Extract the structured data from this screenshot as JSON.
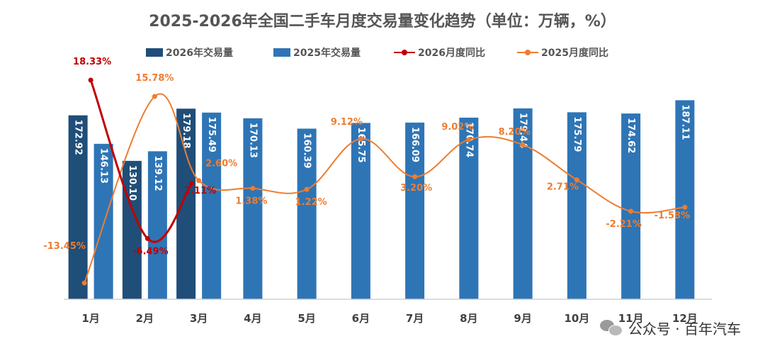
{
  "title": "2025-2026年全国二手车月度交易量变化趋势（单位：万辆，%）",
  "legend": {
    "s2026_volume": "2026年交易量",
    "s2025_volume": "2025年交易量",
    "s2026_yoy": "2026月度同比",
    "s2025_yoy": "2025月度同比"
  },
  "colors": {
    "vol2026": "#1f4e79",
    "vol2025": "#2e75b6",
    "yoy2026": "#c00000",
    "yoy2025": "#ed7d31",
    "bar_label": "#ffffff",
    "axis": "#d0d0d0",
    "tick": "#404040"
  },
  "watermark": "公众号 · 百年汽车",
  "chart_data": {
    "type": "bar",
    "categories": [
      "1月",
      "2月",
      "3月",
      "4月",
      "5月",
      "6月",
      "7月",
      "8月",
      "9月",
      "10月",
      "11月",
      "12月"
    ],
    "series": [
      {
        "name": "2026年交易量",
        "kind": "bar",
        "values": [
          172.92,
          130.1,
          179.18,
          null,
          null,
          null,
          null,
          null,
          null,
          null,
          null,
          null
        ],
        "labels": [
          "172.92",
          "130.10",
          "179.18"
        ]
      },
      {
        "name": "2025年交易量",
        "kind": "bar",
        "values": [
          146.13,
          139.12,
          175.49,
          170.13,
          160.39,
          165.75,
          166.09,
          170.74,
          179.44,
          175.79,
          174.62,
          187.11
        ],
        "labels": [
          "146.13",
          "139.12",
          "175.49",
          "170.13",
          "160.39",
          "165.75",
          "166.09",
          "170.74",
          "179.44",
          "175.79",
          "174.62",
          "187.11"
        ]
      },
      {
        "name": "2026月度同比",
        "kind": "line",
        "unit": "%",
        "values": [
          18.33,
          -6.49,
          2.11,
          null,
          null,
          null,
          null,
          null,
          null,
          null,
          null,
          null
        ],
        "labels": [
          "18.33%",
          "-6.49%",
          "2.11%"
        ]
      },
      {
        "name": "2025月度同比",
        "kind": "line",
        "unit": "%",
        "values": [
          -13.45,
          15.78,
          2.6,
          1.38,
          1.22,
          9.12,
          3.2,
          9.02,
          8.2,
          2.71,
          -2.21,
          -1.58
        ],
        "labels": [
          "-13.45%",
          "15.78%",
          "2.60%",
          "1.38%",
          "1.22%",
          "9.12%",
          "3.20%",
          "9.02%",
          "8.20%",
          "2.71%",
          "-2.21%",
          "-1.58%"
        ]
      }
    ],
    "ylim_volume": [
      0,
      200
    ],
    "ylim_yoy": [
      -20,
      20
    ],
    "grid": false,
    "legend_position": "top"
  }
}
